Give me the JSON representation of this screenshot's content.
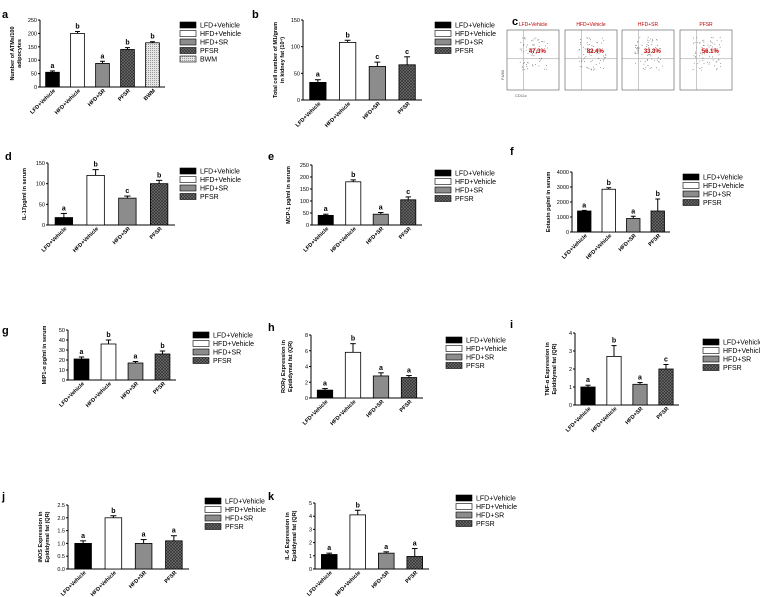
{
  "group_colors": {
    "LFD+Vehicle": "#000000",
    "HFD+Vehicle": "#ffffff",
    "HFD+SR": "#8c8c8c",
    "PFSR": "#5a5a5a",
    "BWM": "#d9d9d9"
  },
  "chart_data": [
    {
      "panel": "a",
      "type": "bar",
      "ylabel": "Number of ATMs/100 adipocytes",
      "ylim": [
        0,
        250
      ],
      "yticks": [
        0,
        50,
        100,
        150,
        200,
        250
      ],
      "categories": [
        "LFD+Vehicle",
        "HFD+Vehicle",
        "HFD+SR",
        "PFSR",
        "BWM"
      ],
      "values": [
        55,
        200,
        88,
        140,
        165
      ],
      "errors": [
        5,
        7,
        8,
        7,
        4
      ],
      "sig": [
        "a",
        "b",
        "a",
        "b",
        "b"
      ],
      "legend": [
        "LFD+Vehicle",
        "HFD+Vehicle",
        "HFD+SR",
        "PFSR",
        "BWM"
      ]
    },
    {
      "panel": "b",
      "type": "bar",
      "ylabel": "Total cell number of M1/gram in kidney fat (10⁴)",
      "ylim": [
        0,
        150
      ],
      "yticks": [
        0,
        50,
        100,
        150
      ],
      "categories": [
        "LFD+Vehicle",
        "HFD+Vehicle",
        "HFD+SR",
        "PFSR"
      ],
      "values": [
        33,
        108,
        63,
        66
      ],
      "errors": [
        5,
        4,
        8,
        15
      ],
      "sig": [
        "a",
        "b",
        "c",
        "c"
      ],
      "legend": [
        "LFD+Vehicle",
        "HFD+Vehicle",
        "HFD+SR",
        "PFSR"
      ]
    },
    {
      "panel": "d",
      "type": "bar",
      "ylabel": "IL-17pg/ml in serum",
      "ylim": [
        0,
        150
      ],
      "yticks": [
        0,
        50,
        100,
        150
      ],
      "categories": [
        "LFD+Vehicle",
        "HFD+Vehicle",
        "HFD+SR",
        "PFSR"
      ],
      "values": [
        18,
        120,
        65,
        100
      ],
      "errors": [
        10,
        14,
        5,
        8
      ],
      "sig": [
        "a",
        "b",
        "c",
        "b"
      ],
      "legend": [
        "LFD+Vehicle",
        "HFD+Vehicle",
        "HFD+SR",
        "PFSR"
      ]
    },
    {
      "panel": "e",
      "type": "bar",
      "ylabel": "MCP-1 pg/ml in serum",
      "ylim": [
        0,
        250
      ],
      "yticks": [
        0,
        50,
        100,
        150,
        200,
        250
      ],
      "categories": [
        "LFD+Vehicle",
        "HFD+Vehicle",
        "HFD+SR",
        "PFSR"
      ],
      "values": [
        40,
        180,
        45,
        105
      ],
      "errors": [
        5,
        8,
        7,
        12
      ],
      "sig": [
        "a",
        "b",
        "a",
        "c"
      ],
      "legend": [
        "LFD+Vehicle",
        "HFD+Vehicle",
        "HFD+SR",
        "PFSR"
      ]
    },
    {
      "panel": "f",
      "type": "bar",
      "ylabel": "Eotaxin pg/ml in serum",
      "ylim": [
        0,
        4000
      ],
      "yticks": [
        0,
        1000,
        2000,
        3000,
        4000
      ],
      "categories": [
        "LFD+Vehicle",
        "HFD+Vehicle",
        "HFD+SR",
        "PFSR"
      ],
      "values": [
        1400,
        2850,
        900,
        1400
      ],
      "errors": [
        40,
        100,
        150,
        800
      ],
      "sig": [
        "a",
        "b",
        "a",
        "b"
      ],
      "legend": [
        "LFD+Vehicle",
        "HFD+Vehicle",
        "HFD+SR",
        "PFSR"
      ]
    },
    {
      "panel": "g",
      "type": "bar",
      "ylabel": "MIP1-α pg/ml in serum",
      "ylim": [
        0,
        50
      ],
      "yticks": [
        0,
        10,
        20,
        30,
        40,
        50
      ],
      "categories": [
        "LFD+Vehicle",
        "HFD+Vehicle",
        "HFD+SR",
        "PFSR"
      ],
      "values": [
        21,
        36,
        17,
        26
      ],
      "errors": [
        2,
        4,
        1.5,
        3
      ],
      "sig": [
        "a",
        "b",
        "a",
        "b"
      ],
      "legend": [
        "LFD+Vehicle",
        "HFD+Vehicle",
        "HFD+SR",
        "PFSR"
      ]
    },
    {
      "panel": "h",
      "type": "bar",
      "ylabel": "RORγ Expression in Epididymal fat (QR)",
      "ylim": [
        0,
        8
      ],
      "yticks": [
        0,
        2,
        4,
        6,
        8
      ],
      "categories": [
        "LFD+Vehicle",
        "HFD+Vehicle",
        "HFD+SR",
        "PFSR"
      ],
      "values": [
        1,
        5.8,
        2.8,
        2.6
      ],
      "errors": [
        0.2,
        1.1,
        0.4,
        0.25
      ],
      "sig": [
        "a",
        "b",
        "a",
        "a"
      ],
      "legend": [
        "LFD+Vehicle",
        "HFD+Vehicle",
        "HFD+SR",
        "PFSR"
      ]
    },
    {
      "panel": "i",
      "type": "bar",
      "ylabel": "TNF-α Expression in Epididymal fat (QR)",
      "ylim": [
        0,
        4
      ],
      "yticks": [
        0,
        1,
        2,
        3,
        4
      ],
      "categories": [
        "LFD+Vehicle",
        "HFD+Vehicle",
        "HFD+SR",
        "PFSR"
      ],
      "values": [
        1,
        2.7,
        1.15,
        2
      ],
      "errors": [
        0.1,
        0.6,
        0.1,
        0.25
      ],
      "sig": [
        "a",
        "b",
        "a",
        "c"
      ],
      "legend": [
        "LFD+Vehicle",
        "HFD+Vehicle",
        "HFD+SR",
        "PFSR"
      ]
    },
    {
      "panel": "j",
      "type": "bar",
      "ylabel": "iNOS Expression in Epididymal fat (QR)",
      "ylim": [
        0,
        2.5
      ],
      "yticks": [
        0.0,
        0.5,
        1.0,
        1.5,
        2.0,
        2.5
      ],
      "categories": [
        "LFD+Vehicle",
        "HFD+Vehicle",
        "HFD+SR",
        "PFSR"
      ],
      "values": [
        1,
        2,
        1,
        1.1
      ],
      "errors": [
        0.1,
        0.08,
        0.15,
        0.2
      ],
      "sig": [
        "a",
        "b",
        "a",
        "a"
      ],
      "legend": [
        "LFD+Vehicle",
        "HFD+Vehicle",
        "HFD+SR",
        "PFSR"
      ]
    },
    {
      "panel": "k",
      "type": "bar",
      "ylabel": "IL-6 Expression in Epididymal fat (QR)",
      "ylim": [
        0,
        5
      ],
      "yticks": [
        0,
        1,
        2,
        3,
        4,
        5
      ],
      "categories": [
        "LFD+Vehicle",
        "HFD+Vehicle",
        "HFD+SR",
        "PFSR"
      ],
      "values": [
        1.1,
        4.1,
        1.2,
        0.95
      ],
      "errors": [
        0.1,
        0.35,
        0.1,
        0.6
      ],
      "sig": [
        "a",
        "b",
        "a",
        "a"
      ],
      "legend": [
        "LFD+Vehicle",
        "HFD+Vehicle",
        "HFD+SR",
        "PFSR"
      ]
    }
  ],
  "flow_panel": {
    "label": "c",
    "groups": [
      {
        "title": "LFD+Vehicle",
        "percent": "47.3%"
      },
      {
        "title": "HFD+Vehicle",
        "percent": "82.4%"
      },
      {
        "title": "HFD+SR",
        "percent": "33.3%"
      },
      {
        "title": "PFSR",
        "percent": "56.1%"
      }
    ],
    "ylabel": "F4/80",
    "xlabel": "CD11c"
  }
}
